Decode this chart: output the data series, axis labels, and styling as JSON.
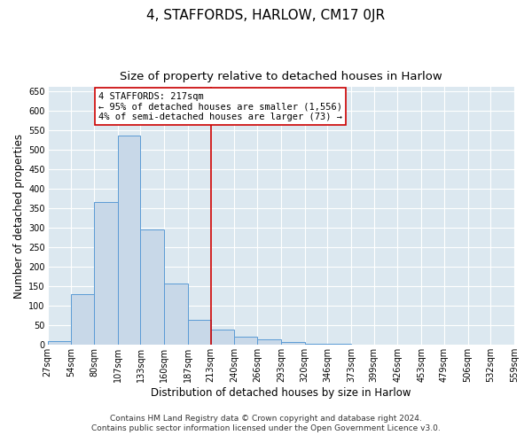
{
  "title": "4, STAFFORDS, HARLOW, CM17 0JR",
  "subtitle": "Size of property relative to detached houses in Harlow",
  "xlabel": "Distribution of detached houses by size in Harlow",
  "ylabel": "Number of detached properties",
  "bar_color": "#c8d8e8",
  "bar_edge_color": "#5b9bd5",
  "bin_edges": [
    27,
    54,
    80,
    107,
    133,
    160,
    187,
    213,
    240,
    266,
    293,
    320,
    346,
    373,
    399,
    426,
    453,
    479,
    506,
    532,
    559
  ],
  "bar_values": [
    10,
    130,
    365,
    535,
    295,
    158,
    65,
    40,
    22,
    15,
    8,
    3,
    3,
    0,
    0,
    0,
    1,
    0,
    0,
    1
  ],
  "tick_labels": [
    "27sqm",
    "54sqm",
    "80sqm",
    "107sqm",
    "133sqm",
    "160sqm",
    "187sqm",
    "213sqm",
    "240sqm",
    "266sqm",
    "293sqm",
    "320sqm",
    "346sqm",
    "373sqm",
    "399sqm",
    "426sqm",
    "453sqm",
    "479sqm",
    "506sqm",
    "532sqm",
    "559sqm"
  ],
  "vline_x": 213,
  "vline_color": "#cc0000",
  "annotation_title": "4 STAFFORDS: 217sqm",
  "annotation_line1": "← 95% of detached houses are smaller (1,556)",
  "annotation_line2": "4% of semi-detached houses are larger (73) →",
  "annotation_box_color": "#ffffff",
  "annotation_box_edge_color": "#cc0000",
  "ylim": [
    0,
    660
  ],
  "yticks": [
    0,
    50,
    100,
    150,
    200,
    250,
    300,
    350,
    400,
    450,
    500,
    550,
    600,
    650
  ],
  "footer1": "Contains HM Land Registry data © Crown copyright and database right 2024.",
  "footer2": "Contains public sector information licensed under the Open Government Licence v3.0.",
  "plot_bg_color": "#dce8f0",
  "fig_bg_color": "#ffffff",
  "grid_color": "#ffffff",
  "title_fontsize": 11,
  "subtitle_fontsize": 9.5,
  "axis_label_fontsize": 8.5,
  "tick_fontsize": 7,
  "footer_fontsize": 6.5,
  "annotation_fontsize": 7.5
}
